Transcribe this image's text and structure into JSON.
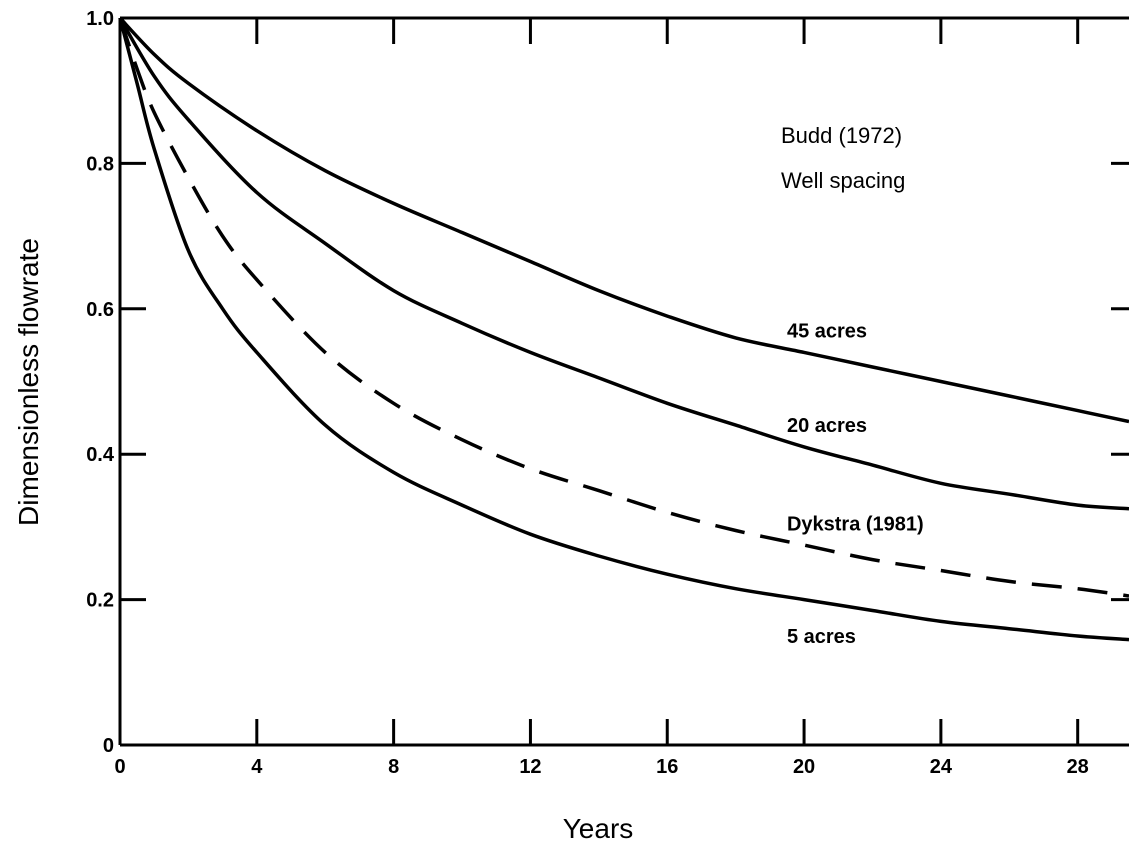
{
  "chart_data": {
    "type": "line",
    "title": "",
    "xlabel": "Years",
    "ylabel": "Dimensionless flowrate",
    "xlim": [
      0,
      29.5
    ],
    "ylim": [
      0,
      1.0
    ],
    "x_ticks": [
      0,
      4,
      8,
      12,
      16,
      20,
      24,
      28
    ],
    "x_tick_labels": [
      "0",
      "4",
      "8",
      "12",
      "16",
      "20",
      "24",
      "28"
    ],
    "y_ticks": [
      0,
      0.2,
      0.4,
      0.6,
      0.8,
      1.0
    ],
    "y_tick_labels": [
      "0",
      "0.2",
      "0.4",
      "0.6",
      "0.8",
      "1.0"
    ],
    "grid": false,
    "legend": "none",
    "annotations": {
      "source_title": "Budd (1972)",
      "subtitle": "Well spacing"
    },
    "series": [
      {
        "name": "45 acres",
        "style": "solid",
        "x": [
          0,
          1,
          2,
          4,
          6,
          8,
          10,
          12,
          14,
          16,
          18,
          20,
          22,
          24,
          26,
          28,
          29.5
        ],
        "y": [
          1.0,
          0.95,
          0.91,
          0.845,
          0.79,
          0.745,
          0.705,
          0.665,
          0.625,
          0.59,
          0.56,
          0.54,
          0.52,
          0.5,
          0.48,
          0.46,
          0.445
        ]
      },
      {
        "name": "20 acres",
        "style": "solid",
        "x": [
          0,
          1,
          2,
          4,
          6,
          8,
          10,
          12,
          14,
          16,
          18,
          20,
          22,
          24,
          26,
          28,
          29.5
        ],
        "y": [
          1.0,
          0.92,
          0.86,
          0.76,
          0.69,
          0.625,
          0.58,
          0.54,
          0.505,
          0.47,
          0.44,
          0.41,
          0.385,
          0.36,
          0.345,
          0.33,
          0.325
        ]
      },
      {
        "name": "Dykstra (1981)",
        "style": "dashed",
        "x": [
          0,
          0.5,
          1,
          2,
          3,
          4,
          6,
          8,
          10,
          12,
          14,
          16,
          18,
          20,
          22,
          24,
          26,
          28,
          29.5
        ],
        "y": [
          1.0,
          0.93,
          0.87,
          0.78,
          0.7,
          0.64,
          0.54,
          0.47,
          0.42,
          0.38,
          0.35,
          0.32,
          0.295,
          0.275,
          0.255,
          0.24,
          0.225,
          0.215,
          0.205
        ]
      },
      {
        "name": "5 acres",
        "style": "solid",
        "x": [
          0,
          0.5,
          1,
          2,
          3,
          4,
          6,
          8,
          10,
          12,
          14,
          16,
          18,
          20,
          22,
          24,
          26,
          28,
          29.5
        ],
        "y": [
          1.0,
          0.91,
          0.82,
          0.68,
          0.6,
          0.54,
          0.44,
          0.375,
          0.33,
          0.29,
          0.26,
          0.235,
          0.215,
          0.2,
          0.185,
          0.17,
          0.16,
          0.15,
          0.145
        ]
      }
    ],
    "series_label_positions": [
      {
        "series": "45 acres",
        "x": 19.5,
        "y": 0.57
      },
      {
        "series": "20 acres",
        "x": 19.5,
        "y": 0.44
      },
      {
        "series": "Dykstra (1981)",
        "x": 19.5,
        "y": 0.305
      },
      {
        "series": "5 acres",
        "x": 19.5,
        "y": 0.15
      }
    ]
  }
}
